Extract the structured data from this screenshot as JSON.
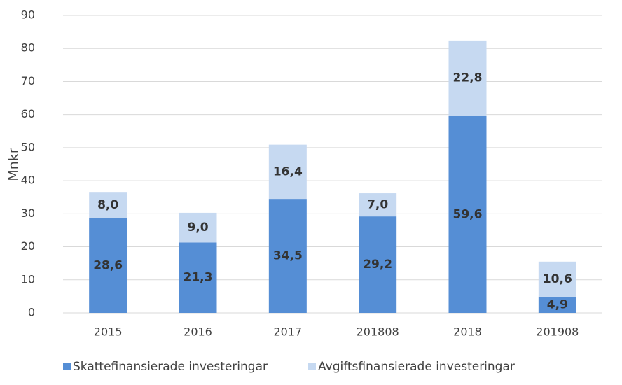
{
  "chart_data": {
    "type": "stacked_bar",
    "y_label": "Mnkr",
    "categories": [
      "2015",
      "2016",
      "2017",
      "201808",
      "2018",
      "201908"
    ],
    "series": [
      {
        "name": "Skattefinansierade investeringar",
        "color": "#558ed5",
        "values": [
          28.6,
          21.3,
          34.5,
          29.2,
          59.6,
          4.9
        ],
        "value_labels": [
          "28,6",
          "21,3",
          "34,5",
          "29,2",
          "59,6",
          "4,9"
        ]
      },
      {
        "name": "Avgiftsfinansierade investeringar",
        "color": "#c6d9f1",
        "values": [
          8.0,
          9.0,
          16.4,
          7.0,
          22.8,
          10.6
        ],
        "value_labels": [
          "8,0",
          "9,0",
          "16,4",
          "7,0",
          "22,8",
          "10,6"
        ]
      }
    ],
    "ylim": [
      0,
      90
    ],
    "yticks": [
      0,
      10,
      20,
      30,
      40,
      50,
      60,
      70,
      80,
      90
    ],
    "grid": true,
    "legend": "bottom"
  }
}
